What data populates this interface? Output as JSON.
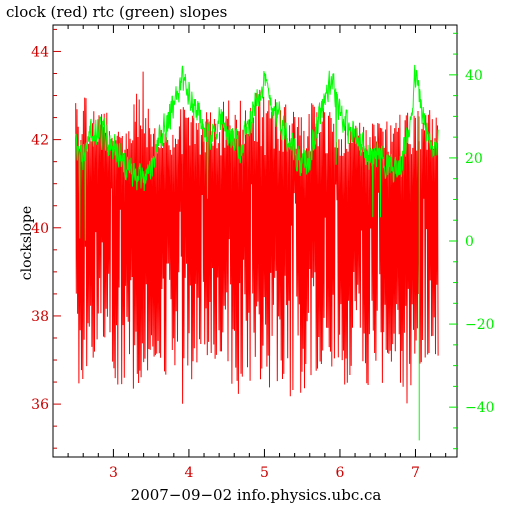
{
  "chart_data": {
    "type": "line",
    "title": "clock (red) rtc (green) slopes",
    "xlabel": "2007−09−02 info.physics.ubc.ca",
    "ylabel": "clockslope",
    "xlim": [
      2.2,
      7.55
    ],
    "ylim_left": [
      34.8,
      44.6
    ],
    "ylim_right": [
      -52,
      52
    ],
    "x_ticks": [
      3,
      4,
      5,
      6,
      7
    ],
    "x_tick_labels": [
      "3",
      "4",
      "5",
      "6",
      "7"
    ],
    "y_left_ticks": [
      36,
      38,
      40,
      42,
      44
    ],
    "y_left_tick_labels": [
      "36",
      "38",
      "40",
      "42",
      "44"
    ],
    "y_right_ticks": [
      -40,
      -20,
      0,
      20,
      40
    ],
    "y_right_tick_labels": [
      "−40",
      "−20",
      "0",
      "20",
      "40"
    ],
    "grid": false,
    "colors": {
      "clock": "#ff0000",
      "rtc": "#00ff00",
      "left_axis": "#cc0000",
      "right_axis": "#00ee00",
      "frame": "#000000"
    },
    "series": [
      {
        "axis": "left",
        "color": "#ff0000",
        "x_range": [
          2.5,
          7.3
        ],
        "high_band": [
          41.6,
          43.0
        ],
        "low_band": [
          36.2,
          39.0
        ],
        "envelope": {
          "x": [
            2.5,
            2.6,
            2.7,
            2.8,
            2.9,
            3.0,
            3.1,
            3.2,
            3.3,
            3.4,
            3.5,
            3.6,
            3.7,
            3.8,
            3.9,
            4.0,
            4.1,
            4.2,
            4.3,
            4.4,
            4.5,
            4.6,
            4.7,
            4.8,
            4.9,
            5.0,
            5.1,
            5.2,
            5.3,
            5.4,
            5.5,
            5.6,
            5.7,
            5.8,
            5.9,
            6.0,
            6.1,
            6.2,
            6.3,
            6.4,
            6.5,
            6.6,
            6.7,
            6.8,
            6.9,
            7.0,
            7.1,
            7.2,
            7.3
          ],
          "max": [
            43.1,
            44.2,
            42.6,
            42.9,
            43.0,
            42.5,
            42.4,
            42.2,
            43.4,
            43.8,
            42.3,
            42.4,
            42.2,
            42.1,
            42.8,
            42.7,
            42.6,
            42.5,
            42.9,
            42.8,
            43.0,
            42.7,
            43.2,
            43.0,
            43.2,
            43.1,
            42.9,
            43.0,
            42.8,
            42.7,
            42.6,
            42.8,
            42.9,
            43.0,
            42.5,
            42.3,
            42.4,
            42.5,
            42.6,
            42.5,
            42.4,
            42.5,
            42.6,
            42.7,
            43.0,
            42.9,
            42.8,
            42.7,
            42.6
          ],
          "min": [
            37.2,
            35.5,
            36.8,
            37.6,
            37.5,
            36.9,
            35.6,
            37.4,
            35.3,
            36.5,
            37.0,
            37.2,
            36.6,
            37.1,
            35.5,
            36.6,
            36.5,
            37.0,
            36.8,
            37.3,
            36.6,
            36.4,
            35.9,
            36.3,
            36.5,
            36.2,
            36.1,
            36.7,
            36.0,
            36.2,
            35.9,
            36.5,
            36.8,
            37.0,
            36.7,
            36.4,
            36.3,
            36.6,
            36.5,
            36.3,
            36.0,
            36.7,
            36.9,
            36.5,
            35.6,
            36.8,
            37.0,
            37.2,
            37.1
          ]
        }
      },
      {
        "axis": "right",
        "color": "#00ff00",
        "x": [
          2.5,
          2.6,
          2.7,
          2.8,
          2.9,
          3.0,
          3.1,
          3.2,
          3.3,
          3.4,
          3.5,
          3.6,
          3.7,
          3.8,
          3.9,
          4.0,
          4.1,
          4.2,
          4.3,
          4.4,
          4.5,
          4.6,
          4.7,
          4.8,
          4.9,
          5.0,
          5.1,
          5.2,
          5.3,
          5.4,
          5.5,
          5.6,
          5.7,
          5.8,
          5.9,
          6.0,
          6.1,
          6.2,
          6.3,
          6.4,
          6.5,
          6.6,
          6.7,
          6.8,
          6.9,
          7.0,
          7.1,
          7.2,
          7.3
        ],
        "values": [
          24,
          20,
          26,
          27,
          25,
          22,
          20,
          18,
          15,
          14,
          16,
          24,
          28,
          33,
          38,
          36,
          32,
          27,
          25,
          30,
          26,
          24,
          22,
          28,
          36,
          38,
          33,
          30,
          26,
          22,
          18,
          20,
          28,
          35,
          38,
          32,
          27,
          25,
          22,
          20,
          21,
          19,
          17,
          18,
          25,
          40,
          30,
          22,
          24
        ],
        "noise": 3.2
      }
    ]
  }
}
